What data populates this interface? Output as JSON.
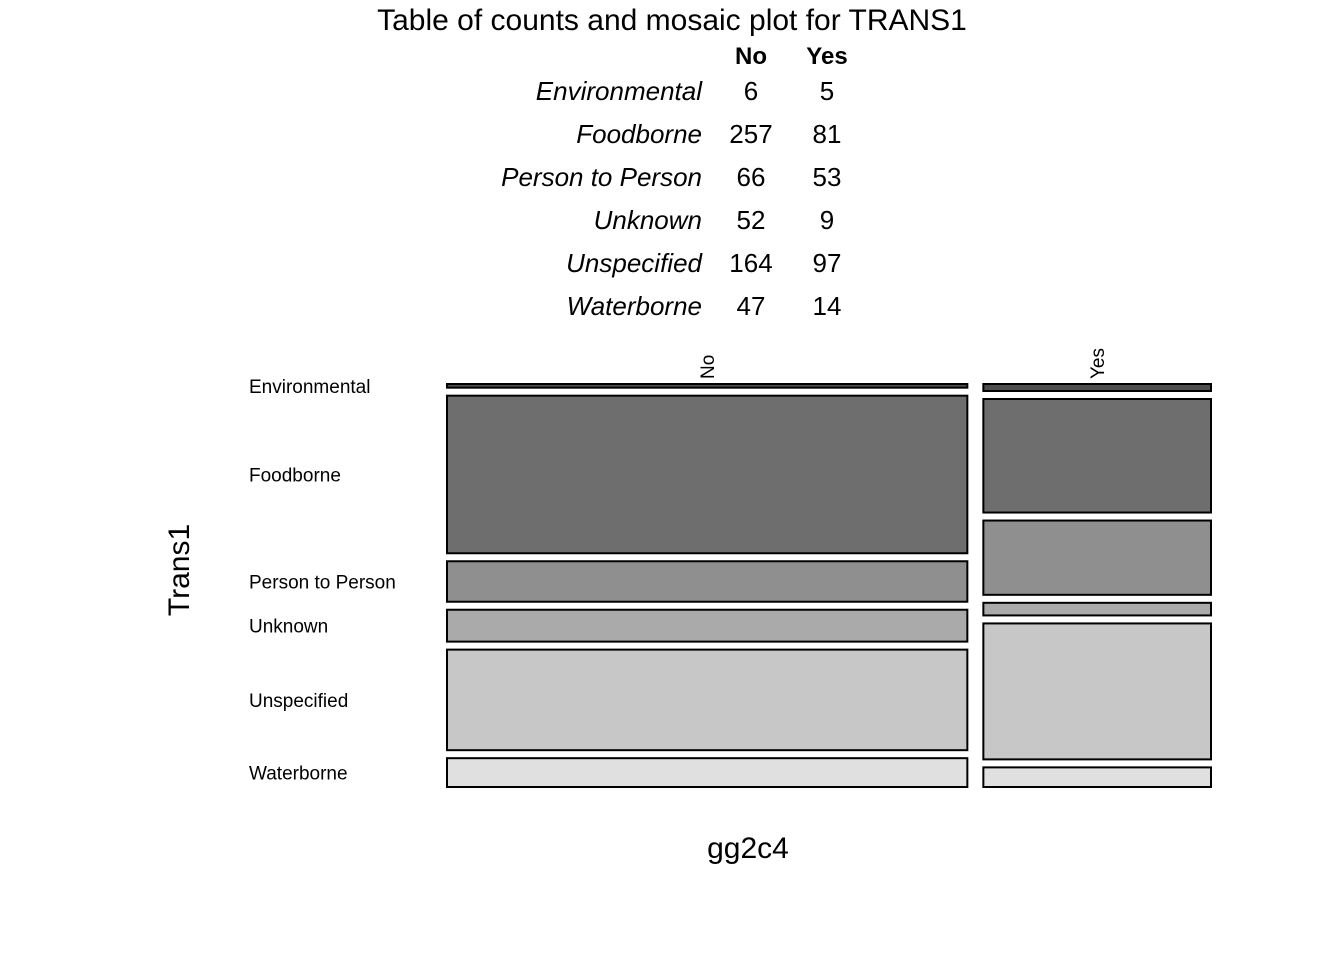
{
  "chart_data": {
    "type": "mosaic",
    "title": "Table of counts and mosaic plot for TRANS1",
    "xlabel": "gg2c4",
    "ylabel": "Trans1",
    "columns": [
      "No",
      "Yes"
    ],
    "rows": [
      "Environmental",
      "Foodborne",
      "Person to Person",
      "Unknown",
      "Unspecified",
      "Waterborne"
    ],
    "counts": [
      [
        6,
        5
      ],
      [
        257,
        81
      ],
      [
        66,
        53
      ],
      [
        52,
        9
      ],
      [
        164,
        97
      ],
      [
        47,
        14
      ]
    ],
    "row_colors": [
      "#4d4d4d",
      "#6e6e6e",
      "#8f8f8f",
      "#aaaaaa",
      "#c7c7c7",
      "#e0e0e0"
    ]
  }
}
